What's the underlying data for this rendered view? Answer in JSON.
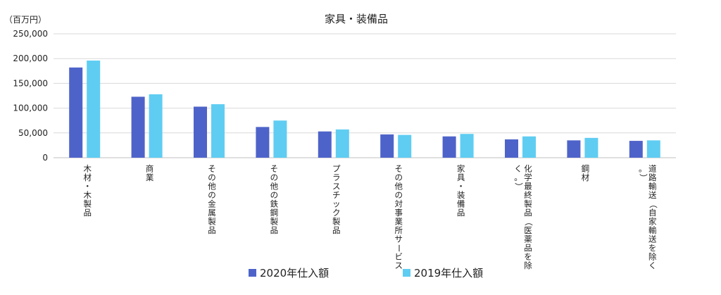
{
  "chart_data": {
    "type": "bar",
    "title": "家具・装備品",
    "unit_label": "（百万円）",
    "ylim": [
      0,
      250000
    ],
    "yticks": [
      0,
      50000,
      100000,
      150000,
      200000,
      250000
    ],
    "ytick_labels": [
      "0",
      "50,000",
      "100,000",
      "150,000",
      "200,000",
      "250,000"
    ],
    "grid": true,
    "legend_position": "bottom-center",
    "categories": [
      "木材・木製品",
      "商業",
      "その他の金属製品",
      "その他の鉄鋼製品",
      "プラスチック製品",
      "その他の対事業所サービス",
      "家具・装備品",
      "化学最終製品（医薬品を除く。）",
      "鋼材",
      "道路輸送（自家輸送を除く。）"
    ],
    "series": [
      {
        "name": "2020年仕入額",
        "color": "#4e63c9",
        "values": [
          182000,
          123000,
          103000,
          62000,
          53000,
          47000,
          43000,
          37000,
          35000,
          34000
        ]
      },
      {
        "name": "2019年仕入額",
        "color": "#5fcdf2",
        "values": [
          196000,
          128000,
          108000,
          75000,
          57000,
          46000,
          48000,
          43000,
          40000,
          35000
        ]
      }
    ]
  }
}
